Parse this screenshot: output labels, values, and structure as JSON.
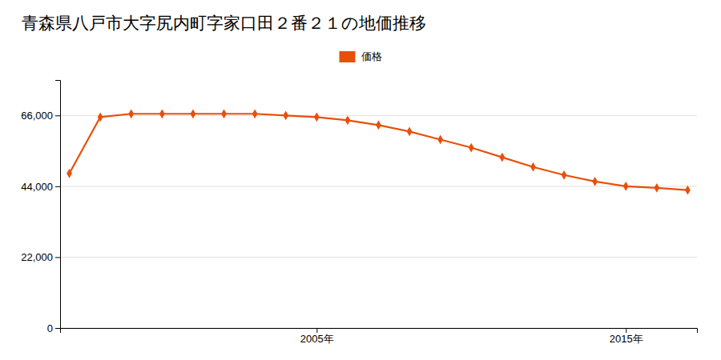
{
  "chart_data": {
    "type": "line",
    "title": "青森県八戸市大字尻内町字家口田２番２１の地価推移",
    "x": [
      1997,
      1998,
      1999,
      2000,
      2001,
      2002,
      2003,
      2004,
      2005,
      2006,
      2007,
      2008,
      2009,
      2010,
      2011,
      2012,
      2013,
      2014,
      2015,
      2016,
      2017
    ],
    "series": [
      {
        "name": "価格",
        "color": "#e8500a",
        "marker": "diamond",
        "values": [
          48000,
          65500,
          66500,
          66500,
          66500,
          66500,
          66500,
          66000,
          65500,
          64500,
          63000,
          61000,
          58500,
          56000,
          53000,
          50000,
          47500,
          45500,
          44000,
          43500,
          42800
        ]
      }
    ],
    "xlim": [
      1996.7,
      2017.3
    ],
    "xticks": [
      {
        "value": 2005,
        "label": "2005年"
      },
      {
        "value": 2015,
        "label": "2015年"
      }
    ],
    "ylim": [
      0,
      77000
    ],
    "yticks": [
      0,
      {
        "value": 22000,
        "label": "22,000"
      },
      {
        "value": 44000,
        "label": "44,000"
      },
      {
        "value": 66000,
        "label": "66,000"
      }
    ],
    "grid": true,
    "legend": "top"
  }
}
